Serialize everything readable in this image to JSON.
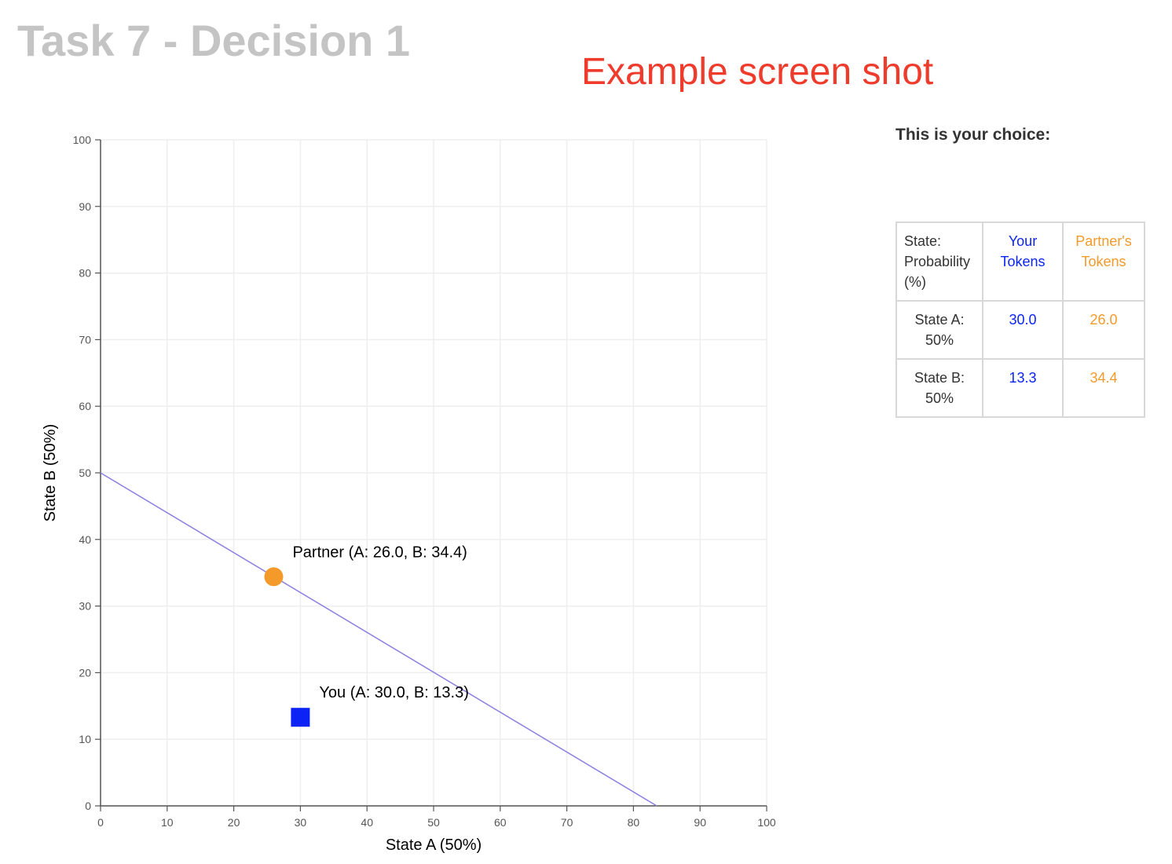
{
  "page_title": "Task 7 - Decision 1",
  "banner": "Example screen shot",
  "choice_panel": {
    "heading": "This is your choice:",
    "headers": {
      "state": "State: Probability (%)",
      "you": "Your Tokens",
      "partner": "Partner's Tokens"
    },
    "rows": [
      {
        "state": "State A: 50%",
        "you": "30.0",
        "partner": "26.0"
      },
      {
        "state": "State B: 50%",
        "you": "13.3",
        "partner": "34.4"
      }
    ]
  },
  "colors": {
    "you": "#0b24f5",
    "partner": "#f39a2a",
    "budget_line": "#8a7fe0",
    "title": "#c4c4c4",
    "banner": "#ef3b2c"
  },
  "chart_data": {
    "type": "scatter",
    "xlabel": "State A (50%)",
    "ylabel": "State B (50%)",
    "xlim": [
      0,
      100
    ],
    "ylim": [
      0,
      100
    ],
    "xticks": [
      "0",
      "10",
      "20",
      "30",
      "40",
      "50",
      "60",
      "70",
      "80",
      "90",
      "100"
    ],
    "yticks": [
      "0",
      "10",
      "20",
      "30",
      "40",
      "50",
      "60",
      "70",
      "80",
      "90",
      "100"
    ],
    "grid": true,
    "budget_line": {
      "x": [
        0,
        83.5
      ],
      "y": [
        50,
        0
      ]
    },
    "series": [
      {
        "name": "Partner",
        "marker": "circle",
        "x": 26.0,
        "y": 34.4,
        "label": "Partner (A: 26.0, B: 34.4)"
      },
      {
        "name": "You",
        "marker": "square",
        "x": 30.0,
        "y": 13.3,
        "label": "You (A: 30.0, B: 13.3)"
      }
    ]
  }
}
